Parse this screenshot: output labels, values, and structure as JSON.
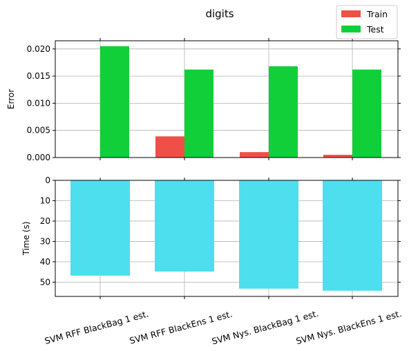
{
  "chart_data": [
    {
      "type": "bar",
      "title": "digits",
      "ylabel": "Error",
      "ylim": [
        0,
        0.0215
      ],
      "yticks": [
        "0.000",
        "0.005",
        "0.010",
        "0.015",
        "0.020"
      ],
      "ytick_values": [
        0,
        0.005,
        0.01,
        0.015,
        0.02
      ],
      "categories": [
        "SVM RFF BlackBag 1 est.",
        "SVM RFF BlackEns 1 est.",
        "SVM Nys. BlackBag 1 est.",
        "SVM Nys. BlackEns 1 est."
      ],
      "series": [
        {
          "name": "Train",
          "color": "#ee5048",
          "values": [
            0.0,
            0.0039,
            0.001,
            0.0005
          ]
        },
        {
          "name": "Test",
          "color": "#11cf39",
          "values": [
            0.0205,
            0.0162,
            0.0168,
            0.0162
          ]
        }
      ],
      "grid": true,
      "legend": "top-right"
    },
    {
      "type": "bar",
      "ylabel": "Time (s)",
      "ylim": [
        57,
        0
      ],
      "inverted_y": true,
      "yticks": [
        "0",
        "10",
        "20",
        "30",
        "40",
        "50"
      ],
      "ytick_values": [
        0,
        10,
        20,
        30,
        40,
        50
      ],
      "categories": [
        "SVM RFF BlackBag 1 est.",
        "SVM RFF BlackEns 1 est.",
        "SVM Nys. BlackBag 1 est.",
        "SVM Nys. BlackEns 1 est."
      ],
      "series": [
        {
          "color": "#4ddfee",
          "values": [
            46.8,
            44.8,
            53.2,
            54.2
          ]
        }
      ],
      "grid": true
    }
  ]
}
